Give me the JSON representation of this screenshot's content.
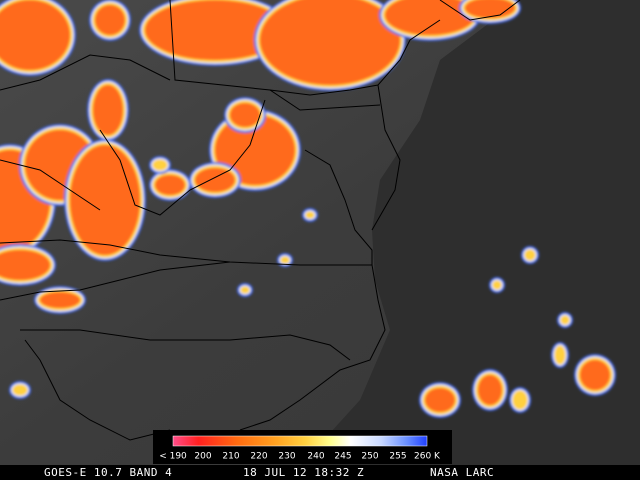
{
  "colorbar": {
    "labels": [
      "< 190",
      "200",
      "210",
      "220",
      "230",
      "240",
      "245",
      "250",
      "255",
      "260 K"
    ]
  },
  "footer": {
    "satellite": "GOES-E 10.7 BAND 4",
    "timestamp": "18 JUL 12 18:32 Z",
    "source": "NASA LARC"
  }
}
